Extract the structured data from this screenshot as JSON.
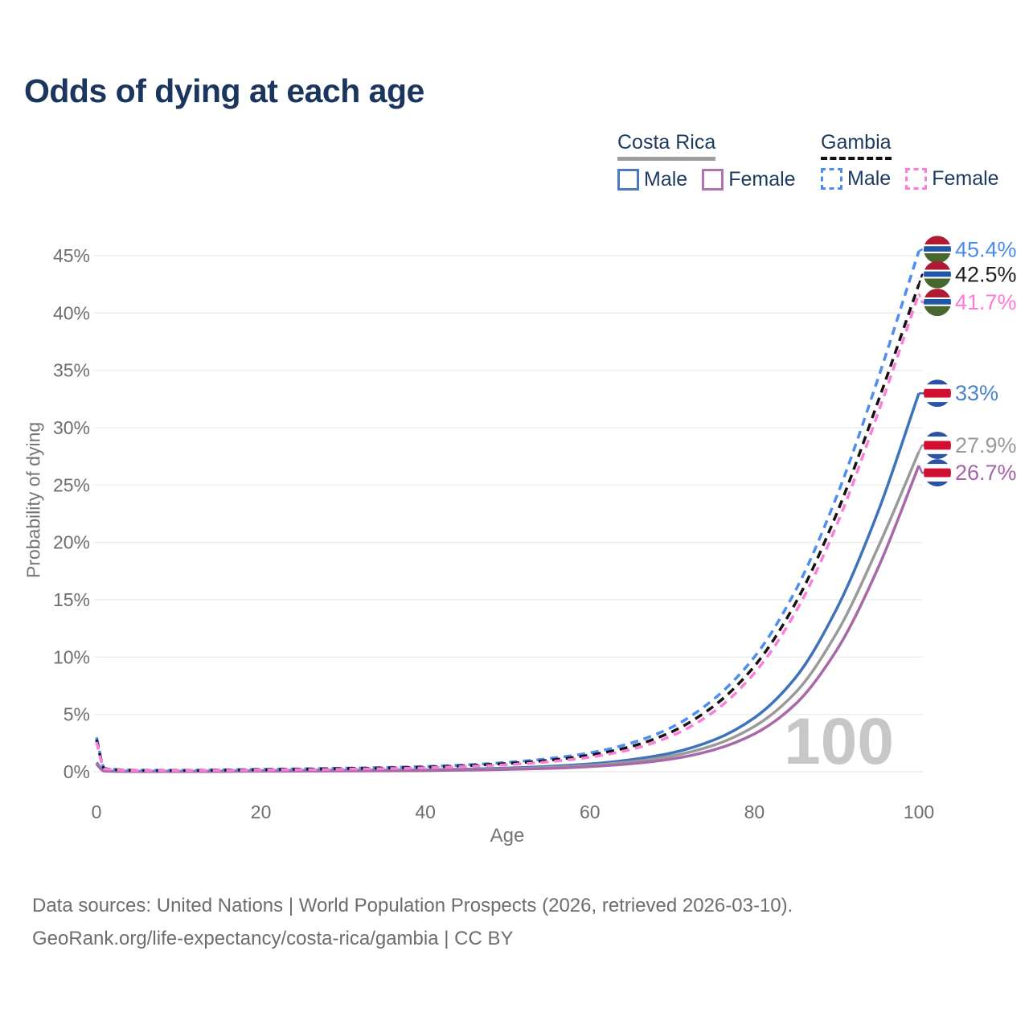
{
  "title": "Odds of dying at each age",
  "legend": {
    "groups": [
      {
        "name": "Costa Rica",
        "underline_color": "#9e9e9e",
        "dashed": false,
        "items": [
          {
            "label": "Male",
            "color": "#4a7bc0"
          },
          {
            "label": "Female",
            "color": "#b173af"
          }
        ]
      },
      {
        "name": "Gambia",
        "underline_color": "#111111",
        "dashed": true,
        "items": [
          {
            "label": "Male",
            "color": "#4a8cf0"
          },
          {
            "label": "Female",
            "color": "#fb7ed4"
          }
        ]
      }
    ]
  },
  "chart_data": {
    "type": "line",
    "title": "Odds of dying at each age",
    "xlabel": "Age",
    "ylabel": "Probability of dying",
    "xlim": [
      0,
      100
    ],
    "ylim": [
      0,
      47
    ],
    "x_ticks": [
      0,
      20,
      40,
      60,
      80,
      100
    ],
    "y_ticks": [
      0,
      5,
      10,
      15,
      20,
      25,
      30,
      35,
      40,
      45
    ],
    "y_tick_suffix": "%",
    "grid": "horizontal",
    "watermark": "100",
    "ages": [
      0,
      1,
      5,
      10,
      15,
      20,
      25,
      30,
      35,
      40,
      45,
      50,
      55,
      60,
      65,
      70,
      75,
      80,
      85,
      90,
      95,
      100
    ],
    "series": [
      {
        "id": "costa-rica-male",
        "country": "Costa Rica",
        "sex": "Male",
        "color": "#3e73bb",
        "dashed": false,
        "flag": "costa_rica",
        "end_value": 33,
        "end_label": "33%",
        "label_color": "#4a82cd",
        "label_dy": 0,
        "values": [
          0.8,
          0.06,
          0.03,
          0.03,
          0.05,
          0.09,
          0.11,
          0.12,
          0.14,
          0.17,
          0.23,
          0.32,
          0.46,
          0.68,
          1.05,
          1.65,
          2.75,
          4.7,
          8.2,
          14.2,
          22.6,
          33.0
        ]
      },
      {
        "id": "costa-rica-total",
        "country": "Costa Rica",
        "sex": "Both",
        "color": "#9a9a9a",
        "dashed": false,
        "flag": "costa_rica",
        "end_value": 27.9,
        "end_label": "27.9%",
        "label_color": "#9a9a9a",
        "label_dy": -8,
        "values": [
          0.72,
          0.055,
          0.025,
          0.025,
          0.04,
          0.07,
          0.08,
          0.09,
          0.11,
          0.14,
          0.19,
          0.26,
          0.38,
          0.56,
          0.87,
          1.38,
          2.3,
          3.95,
          6.9,
          12.1,
          19.5,
          27.9
        ]
      },
      {
        "id": "costa-rica-female",
        "country": "Costa Rica",
        "sex": "Female",
        "color": "#a869a8",
        "dashed": false,
        "flag": "costa_rica",
        "end_value": 26.7,
        "end_label": "26.7%",
        "label_color": "#a365a8",
        "label_dy": 9,
        "values": [
          0.65,
          0.05,
          0.02,
          0.02,
          0.03,
          0.05,
          0.06,
          0.07,
          0.08,
          0.1,
          0.14,
          0.2,
          0.29,
          0.45,
          0.7,
          1.12,
          1.9,
          3.3,
          5.9,
          10.6,
          17.7,
          26.7
        ]
      },
      {
        "id": "gambia-male",
        "country": "Gambia",
        "sex": "Male",
        "color": "#4e8df2",
        "dashed": true,
        "flag": "gambia",
        "end_value": 45.4,
        "end_label": "45.4%",
        "label_color": "#4a8ced",
        "label_dy": -2,
        "values": [
          3.0,
          0.28,
          0.13,
          0.12,
          0.16,
          0.21,
          0.26,
          0.31,
          0.37,
          0.46,
          0.6,
          0.82,
          1.15,
          1.65,
          2.5,
          3.9,
          6.3,
          10.0,
          15.8,
          24.0,
          34.2,
          45.4
        ]
      },
      {
        "id": "gambia-total",
        "country": "Gambia",
        "sex": "Both",
        "color": "#141414",
        "dashed": true,
        "flag": "gambia",
        "end_value": 42.5,
        "end_label": "42.5%",
        "label_color": "#1f1f1f",
        "label_dy": -12,
        "values": [
          2.8,
          0.26,
          0.12,
          0.11,
          0.14,
          0.18,
          0.22,
          0.27,
          0.32,
          0.4,
          0.53,
          0.72,
          1.0,
          1.45,
          2.2,
          3.5,
          5.7,
          9.2,
          14.7,
          22.5,
          32.2,
          42.5
        ]
      },
      {
        "id": "gambia-female",
        "country": "Gambia",
        "sex": "Female",
        "color": "#fa7ed8",
        "dashed": true,
        "flag": "gambia",
        "end_value": 41.7,
        "end_label": "41.7%",
        "label_color": "#ff79d7",
        "label_dy": 11,
        "values": [
          2.6,
          0.24,
          0.11,
          0.1,
          0.12,
          0.15,
          0.18,
          0.22,
          0.27,
          0.34,
          0.46,
          0.62,
          0.87,
          1.27,
          1.95,
          3.15,
          5.2,
          8.6,
          13.9,
          21.5,
          31.2,
          41.7
        ]
      }
    ],
    "flags": {
      "gambia": {
        "stripes": [
          [
            "#b01b34",
            0,
            32
          ],
          [
            "#ffffff",
            32,
            38
          ],
          [
            "#2056a7",
            38,
            58
          ],
          [
            "#ffffff",
            58,
            64
          ],
          [
            "#47672f",
            64,
            100
          ]
        ]
      },
      "costa_rica": {
        "stripes": [
          [
            "#2a52a5",
            0,
            18
          ],
          [
            "#ffffff",
            18,
            34
          ],
          [
            "#d00f31",
            34,
            66
          ],
          [
            "#ffffff",
            66,
            82
          ],
          [
            "#2a52a5",
            82,
            100
          ]
        ]
      }
    },
    "colors": {
      "grid": "#ececec",
      "tick_text": "#6e6e6e",
      "watermark": "#c7c7c7"
    }
  },
  "footer": {
    "line1": "Data sources: United Nations | World Population Prospects (2026, retrieved 2026-03-10).",
    "line2": "GeoRank.org/life-expectancy/costa-rica/gambia | CC BY"
  }
}
